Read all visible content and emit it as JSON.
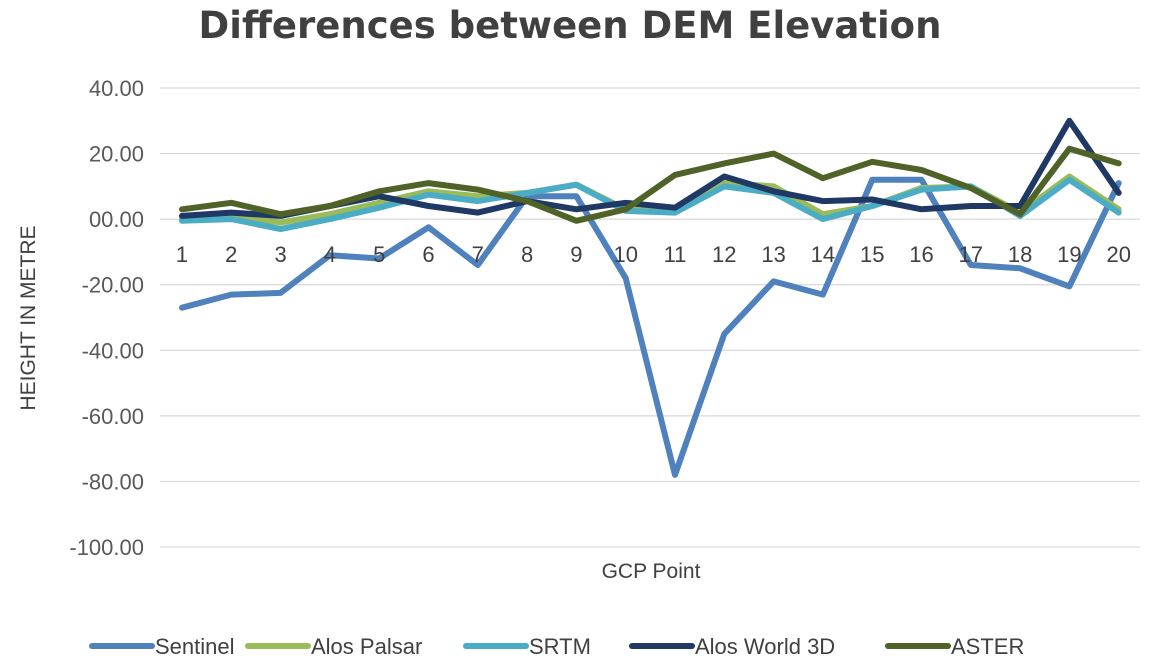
{
  "chart_data": {
    "type": "line",
    "title": "Differences between DEM Elevation",
    "xlabel": "GCP Point",
    "ylabel": "HEIGHT IN METRE",
    "ylim": [
      -100,
      40
    ],
    "yticks": [
      40,
      20,
      0,
      -20,
      -40,
      -60,
      -80,
      -100
    ],
    "ytick_labels": [
      "40.00",
      "20.00",
      "00.00",
      "-20.00",
      "-40.00",
      "-60.00",
      "-80.00",
      "-100.00"
    ],
    "categories": [
      "1",
      "2",
      "3",
      "4",
      "5",
      "6",
      "7",
      "8",
      "9",
      "10",
      "11",
      "12",
      "13",
      "14",
      "15",
      "16",
      "17",
      "18",
      "19",
      "20"
    ],
    "grid": true,
    "legend_position": "bottom",
    "series": [
      {
        "name": "Sentinel",
        "color": "#4f81bd",
        "values": [
          -27,
          -23,
          -22.5,
          -11,
          -12,
          -2.5,
          -14,
          7,
          7,
          -18,
          -78,
          -35,
          -19,
          -23,
          12,
          12,
          -14,
          -15,
          -20.5,
          11
        ]
      },
      {
        "name": "Alos Palsar",
        "color": "#9bbb59",
        "values": [
          0,
          1,
          -1,
          1.5,
          5,
          8.5,
          7,
          8,
          10.5,
          3,
          2,
          11,
          10,
          1.5,
          4,
          9.5,
          10,
          2,
          13,
          3
        ]
      },
      {
        "name": "SRTM",
        "color": "#4bacc6",
        "values": [
          -0.5,
          0,
          -3,
          0,
          3.5,
          7.5,
          5.5,
          8,
          10.5,
          2.5,
          2,
          10,
          8,
          0,
          4,
          9,
          10,
          1,
          12,
          2
        ]
      },
      {
        "name": "Alos World 3D",
        "color": "#1f3864",
        "values": [
          1,
          2,
          1,
          4,
          7,
          4,
          2,
          5.5,
          3,
          5,
          3.5,
          13,
          8.5,
          5.5,
          6,
          3,
          4,
          4,
          30,
          8
        ]
      },
      {
        "name": "ASTER",
        "color": "#4f6228",
        "values": [
          3,
          5,
          1.5,
          4,
          8.5,
          11,
          9,
          5.5,
          -0.5,
          3,
          13.5,
          17,
          20,
          12.5,
          17.5,
          15,
          9.5,
          1.5,
          21.5,
          17
        ]
      }
    ]
  }
}
